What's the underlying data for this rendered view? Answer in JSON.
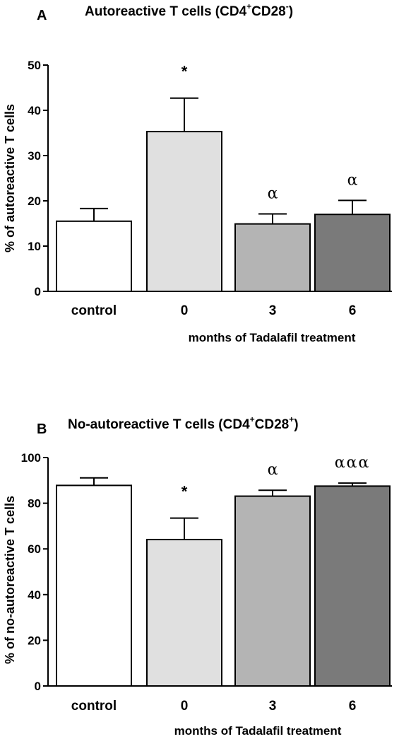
{
  "chart_data": [
    {
      "type": "bar",
      "panel_letter": "A",
      "title": {
        "main": "Autoreactive T cells (CD4",
        "sup1": "+",
        "mid": "CD28",
        "sup2": "-",
        "end": ")"
      },
      "ylabel": "% of autoreactive T cells",
      "xlabel": "months of Tadalafil treatment",
      "categories": [
        "control",
        "0",
        "3",
        "6"
      ],
      "values": [
        15.5,
        35.3,
        14.9,
        17.0
      ],
      "errors": [
        2.8,
        7.4,
        2.2,
        3.1
      ],
      "annotations": [
        "",
        "*",
        "α",
        "α"
      ],
      "colors": [
        "#ffffff",
        "#e0e0e0",
        "#b4b4b4",
        "#7a7a7a"
      ],
      "ylim": [
        0,
        50
      ],
      "yticks": [
        0,
        10,
        20,
        30,
        40,
        50
      ]
    },
    {
      "type": "bar",
      "panel_letter": "B",
      "title": {
        "main": "No-autoreactive T cells (CD4",
        "sup1": "+",
        "mid": "CD28",
        "sup2": "+",
        "end": ")"
      },
      "ylabel": "% of no-autoreactive T cells",
      "xlabel": "months of Tadalafil treatment",
      "categories": [
        "control",
        "0",
        "3",
        "6"
      ],
      "values": [
        87.8,
        64.1,
        83.1,
        87.5
      ],
      "errors": [
        3.3,
        9.4,
        2.6,
        1.3
      ],
      "annotations": [
        "",
        "*",
        "α",
        "ααα"
      ],
      "colors": [
        "#ffffff",
        "#e0e0e0",
        "#b4b4b4",
        "#7a7a7a"
      ],
      "ylim": [
        0,
        100
      ],
      "yticks": [
        0,
        20,
        40,
        60,
        80,
        100
      ]
    }
  ]
}
